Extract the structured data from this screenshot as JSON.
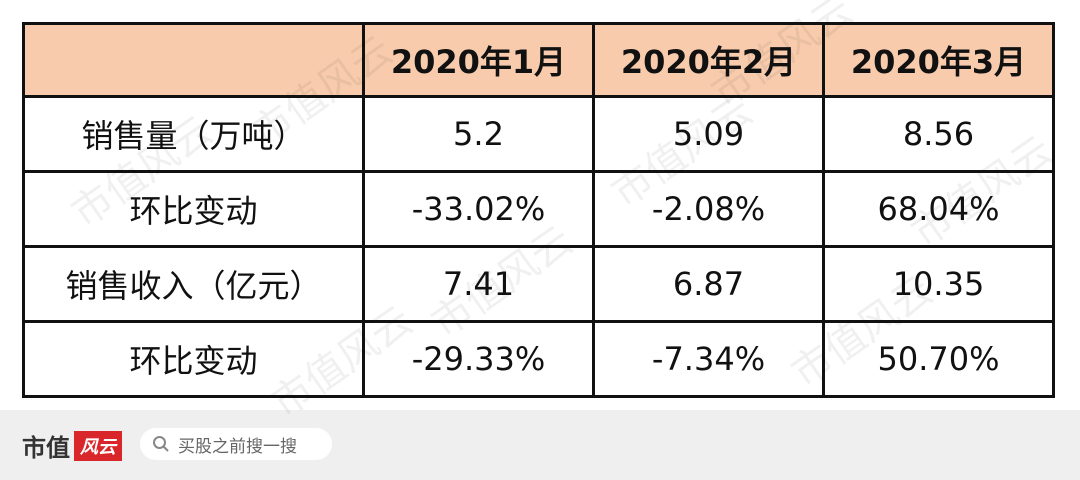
{
  "table": {
    "columns": [
      "2020年1月",
      "2020年2月",
      "2020年3月"
    ],
    "rows": [
      [
        "销售量（万吨）",
        "5.2",
        "5.09",
        "8.56"
      ],
      [
        "环比变动",
        "-33.02%",
        "-2.08%",
        "68.04%"
      ],
      [
        "销售收入（亿元）",
        "7.41",
        "6.87",
        "10.35"
      ],
      [
        "环比变动",
        "-29.33%",
        "-7.34%",
        "50.70%"
      ]
    ]
  },
  "watermark": "市值风云",
  "footer": {
    "logo_text": "市值",
    "logo_badge": "风云",
    "search_placeholder": "买股之前搜一搜"
  }
}
